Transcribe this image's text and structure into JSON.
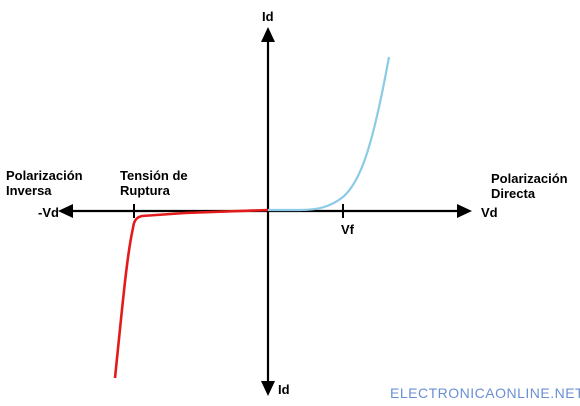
{
  "labels": {
    "id_top": "Id",
    "id_bottom": "Id",
    "vd_right": "Vd",
    "vd_left": "-Vd",
    "vf": "Vf",
    "breakdown_line1": "Tensión de",
    "breakdown_line2": "Ruptura",
    "reverse_line1": "Polarización",
    "reverse_line2": "Inversa",
    "forward_line1": "Polarización",
    "forward_line2": "Directa"
  },
  "watermark": "ELECTRONICAONLINE.NET",
  "colors": {
    "axis": "#000000",
    "forward_curve": "#8ccbe6",
    "reverse_curve": "#e31b1b",
    "watermark": "#6a8fd6"
  }
}
